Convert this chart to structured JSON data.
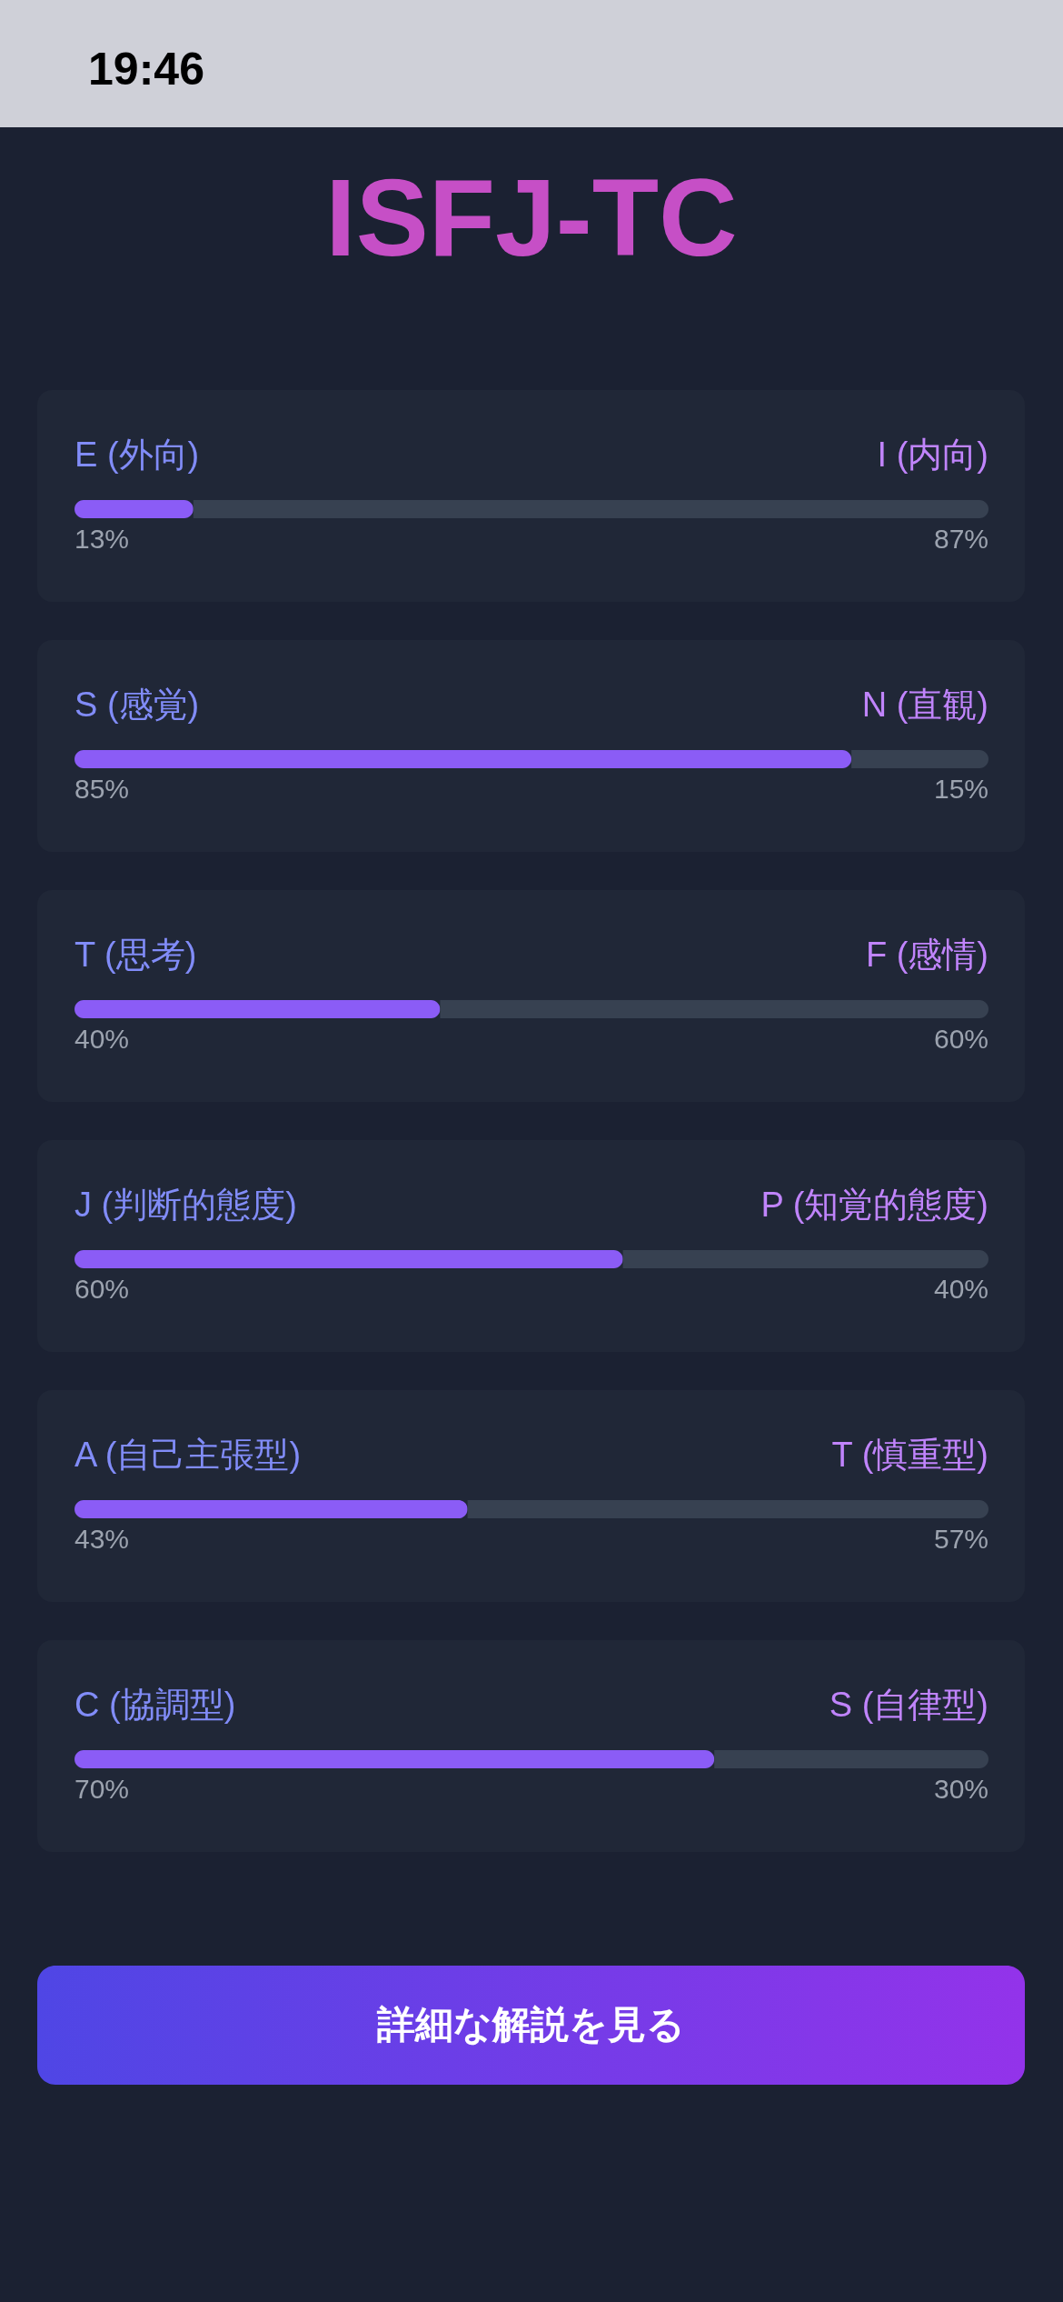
{
  "chart_data": [
    {
      "type": "bar",
      "title": "ISFJ-TC",
      "annotations": [
        "19:46"
      ],
      "orientation": "horizontal",
      "stacked": true,
      "categories": [
        null
      ],
      "tick_labels": false,
      "series": [
        {
          "name": "E (外向)",
          "color": "#8b5cf6",
          "values": [
            13
          ],
          "value_labels": [
            "13%"
          ]
        },
        {
          "name": "I (内向)",
          "color": "#374151",
          "values": [
            87
          ],
          "value_labels": [
            "87%"
          ]
        }
      ]
    },
    {
      "type": "bar",
      "orientation": "horizontal",
      "stacked": true,
      "categories": [
        null
      ],
      "tick_labels": false,
      "series": [
        {
          "name": "S (感覚)",
          "color": "#8b5cf6",
          "values": [
            85
          ],
          "value_labels": [
            "85%"
          ]
        },
        {
          "name": "N (直観)",
          "color": "#374151",
          "values": [
            15
          ],
          "value_labels": [
            "15%"
          ]
        }
      ]
    },
    {
      "type": "bar",
      "orientation": "horizontal",
      "stacked": true,
      "categories": [
        null
      ],
      "tick_labels": false,
      "series": [
        {
          "name": "T (思考)",
          "color": "#8b5cf6",
          "values": [
            40
          ],
          "value_labels": [
            "40%"
          ]
        },
        {
          "name": "F (感情)",
          "color": "#374151",
          "values": [
            60
          ],
          "value_labels": [
            "60%"
          ]
        }
      ]
    },
    {
      "type": "bar",
      "orientation": "horizontal",
      "stacked": true,
      "categories": [
        null
      ],
      "tick_labels": false,
      "series": [
        {
          "name": "J (判断的態度)",
          "color": "#8b5cf6",
          "values": [
            60
          ],
          "value_labels": [
            "60%"
          ]
        },
        {
          "name": "P (知覚的態度)",
          "color": "#374151",
          "values": [
            40
          ],
          "value_labels": [
            "40%"
          ]
        }
      ]
    },
    {
      "type": "bar",
      "orientation": "horizontal",
      "stacked": true,
      "categories": [
        null
      ],
      "tick_labels": false,
      "series": [
        {
          "name": "A (自己主張型)",
          "color": "#8b5cf6",
          "values": [
            43
          ],
          "value_labels": [
            "43%"
          ]
        },
        {
          "name": "T (慎重型)",
          "color": "#374151",
          "values": [
            57
          ],
          "value_labels": [
            "57%"
          ]
        }
      ]
    },
    {
      "type": "bar",
      "annotations": [
        "詳細な解説を見る"
      ],
      "orientation": "horizontal",
      "stacked": true,
      "categories": [
        null
      ],
      "tick_labels": false,
      "series": [
        {
          "name": "C (協調型)",
          "color": "#8b5cf6",
          "values": [
            70
          ],
          "value_labels": [
            "70%"
          ]
        },
        {
          "name": "S (自律型)",
          "color": "#374151",
          "values": [
            30
          ],
          "value_labels": [
            "30%"
          ]
        }
      ]
    }
  ]
}
